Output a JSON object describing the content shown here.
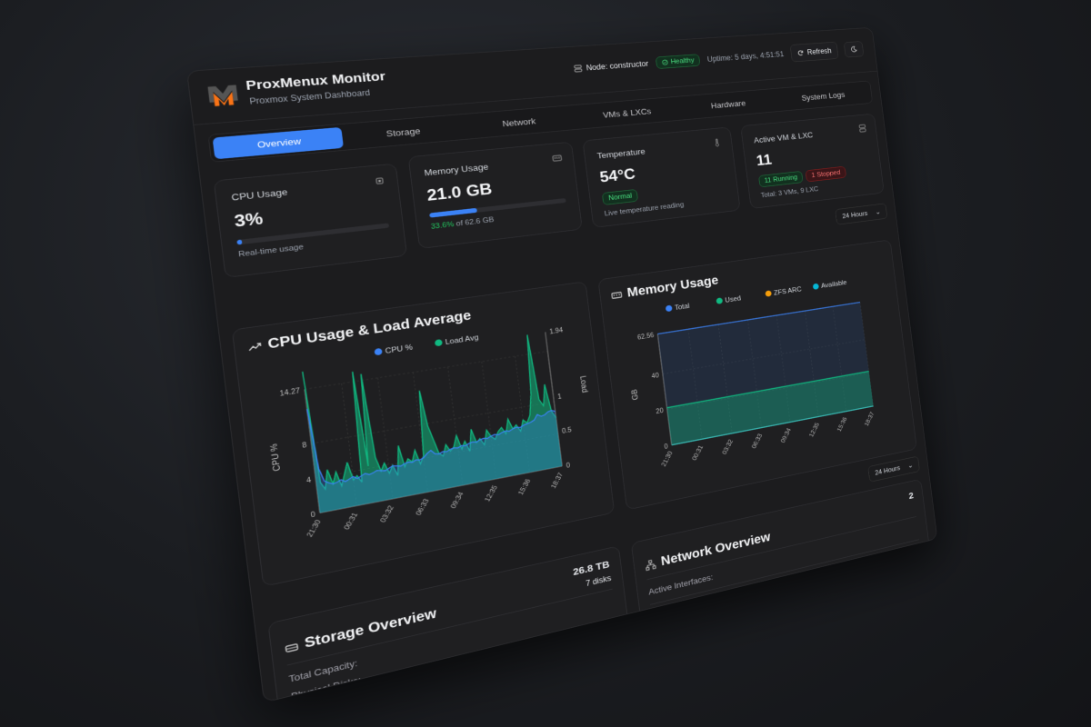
{
  "header": {
    "title": "ProxMenux Monitor",
    "subtitle": "Proxmox System Dashboard",
    "node_label": "Node: constructor",
    "health": "Healthy",
    "uptime": "Uptime: 5 days, 4:51:51",
    "refresh_label": "Refresh",
    "theme_icon": "moon-icon"
  },
  "tabs": [
    "Overview",
    "Storage",
    "Network",
    "VMs & LXCs",
    "Hardware",
    "System Logs"
  ],
  "active_tab": "Overview",
  "stats": {
    "cpu": {
      "label": "CPU Usage",
      "value": "3%",
      "percent": 3,
      "note": "Real-time usage"
    },
    "memory": {
      "label": "Memory Usage",
      "value": "21.0 GB",
      "percent": 33.6,
      "pct_text": "33.6%",
      "of_text": " of 62.6 GB"
    },
    "temperature": {
      "label": "Temperature",
      "value": "54°C",
      "status": "Normal",
      "note": "Live temperature reading"
    },
    "vms": {
      "label": "Active VM & LXC",
      "value": "11",
      "running": "11 Running",
      "stopped": "1 Stopped",
      "note": "Total: 3 VMs, 9 LXC"
    }
  },
  "time_range": "24 Hours",
  "colors": {
    "accent": "#3b82f6",
    "green": "#10b981",
    "orange": "#f59e0b",
    "cyan": "#06b6d4",
    "red": "#f87171"
  },
  "chart_data": [
    {
      "type": "line",
      "title": "CPU Usage & Load Average",
      "ylabel": "CPU %",
      "y2label": "Load",
      "ylim": [
        0,
        14.27
      ],
      "y2lim": [
        0,
        1.94
      ],
      "yticks": [
        "0",
        "4",
        "8",
        "14.27"
      ],
      "y2ticks": [
        "0",
        "0.5",
        "1",
        "1.94"
      ],
      "x_labels": [
        "21:30",
        "00:31",
        "03:32",
        "06:33",
        "09:34",
        "12:35",
        "15:36",
        "18:37"
      ],
      "grid": true,
      "legend": "top",
      "series": [
        {
          "name": "CPU %",
          "axis": "left",
          "color": "#3b82f6",
          "values": [
            12,
            5,
            3.5,
            3.2,
            3,
            3.1,
            3.3,
            3,
            3.2,
            3.4,
            3.1,
            3.3,
            3.5,
            3.3,
            3.4,
            3.6,
            3.5,
            3.4,
            3.6,
            3.8,
            3.7,
            3.6,
            3.8,
            3.9,
            3.8,
            4,
            3.9,
            4.1,
            4.5,
            4.8,
            4.3,
            4.2,
            4.4,
            4.3,
            4.5,
            4.6,
            4.5,
            4.7,
            4.6,
            4.8,
            4.9,
            4.8,
            5,
            5.1,
            5,
            5.2,
            5.3,
            5.2,
            5.4,
            5.5,
            5.4,
            5.6,
            5.7,
            5.6,
            5.8,
            5.9,
            6,
            6.2,
            6.8,
            6.5,
            6.6,
            6.9,
            7,
            6.8
          ]
        },
        {
          "name": "Load Avg",
          "axis": "right",
          "color": "#10b981",
          "values": [
            1.9,
            0.4,
            0.3,
            0.55,
            0.35,
            0.5,
            0.3,
            0.45,
            0.6,
            0.35,
            0.4,
            0.3,
            1.8,
            0.5,
            1.75,
            0.6,
            0.4,
            0.5,
            0.35,
            0.45,
            0.3,
            0.7,
            0.4,
            0.5,
            0.45,
            0.6,
            0.4,
            0.5,
            1.4,
            0.9,
            0.7,
            0.5,
            0.45,
            0.6,
            0.5,
            0.55,
            0.7,
            0.5,
            0.6,
            0.45,
            0.75,
            0.55,
            0.6,
            0.5,
            0.7,
            0.6,
            0.55,
            0.65,
            0.7,
            0.6,
            0.8,
            0.65,
            0.7,
            0.6,
            0.75,
            0.7,
            0.8,
            1.1,
            1.94,
            1.0,
            0.9,
            1.2,
            0.8,
            0.7
          ]
        }
      ]
    },
    {
      "type": "area",
      "title": "Memory Usage",
      "ylabel": "GB",
      "ylim": [
        0,
        62.56
      ],
      "yticks": [
        "0",
        "20",
        "40",
        "62.56"
      ],
      "x_labels": [
        "21:30",
        "00:31",
        "03:32",
        "06:33",
        "09:34",
        "12:35",
        "15:36",
        "18:37"
      ],
      "grid": true,
      "legend": "top",
      "series": [
        {
          "name": "Total",
          "color": "#3b82f6",
          "values": [
            62.56,
            62.56,
            62.56,
            62.56,
            62.56,
            62.56,
            62.56,
            62.56
          ]
        },
        {
          "name": "Used",
          "color": "#10b981",
          "values": [
            21,
            21,
            21,
            21,
            21,
            21,
            21,
            21
          ]
        },
        {
          "name": "ZFS ARC",
          "color": "#f59e0b",
          "values": [
            0,
            0,
            0,
            0,
            0,
            0,
            0,
            0
          ]
        },
        {
          "name": "Available",
          "color": "#06b6d4",
          "values": [
            0,
            0,
            0,
            0,
            0,
            0,
            0,
            0
          ]
        }
      ]
    }
  ],
  "storage": {
    "title": "Storage Overview",
    "total": "26.8 TB",
    "disks": "7 disks",
    "rows": [
      "Total Capacity:",
      "Physical Disks:"
    ]
  },
  "network": {
    "title": "Network Overview",
    "count": "2",
    "active_label": "Active Interfaces:"
  }
}
